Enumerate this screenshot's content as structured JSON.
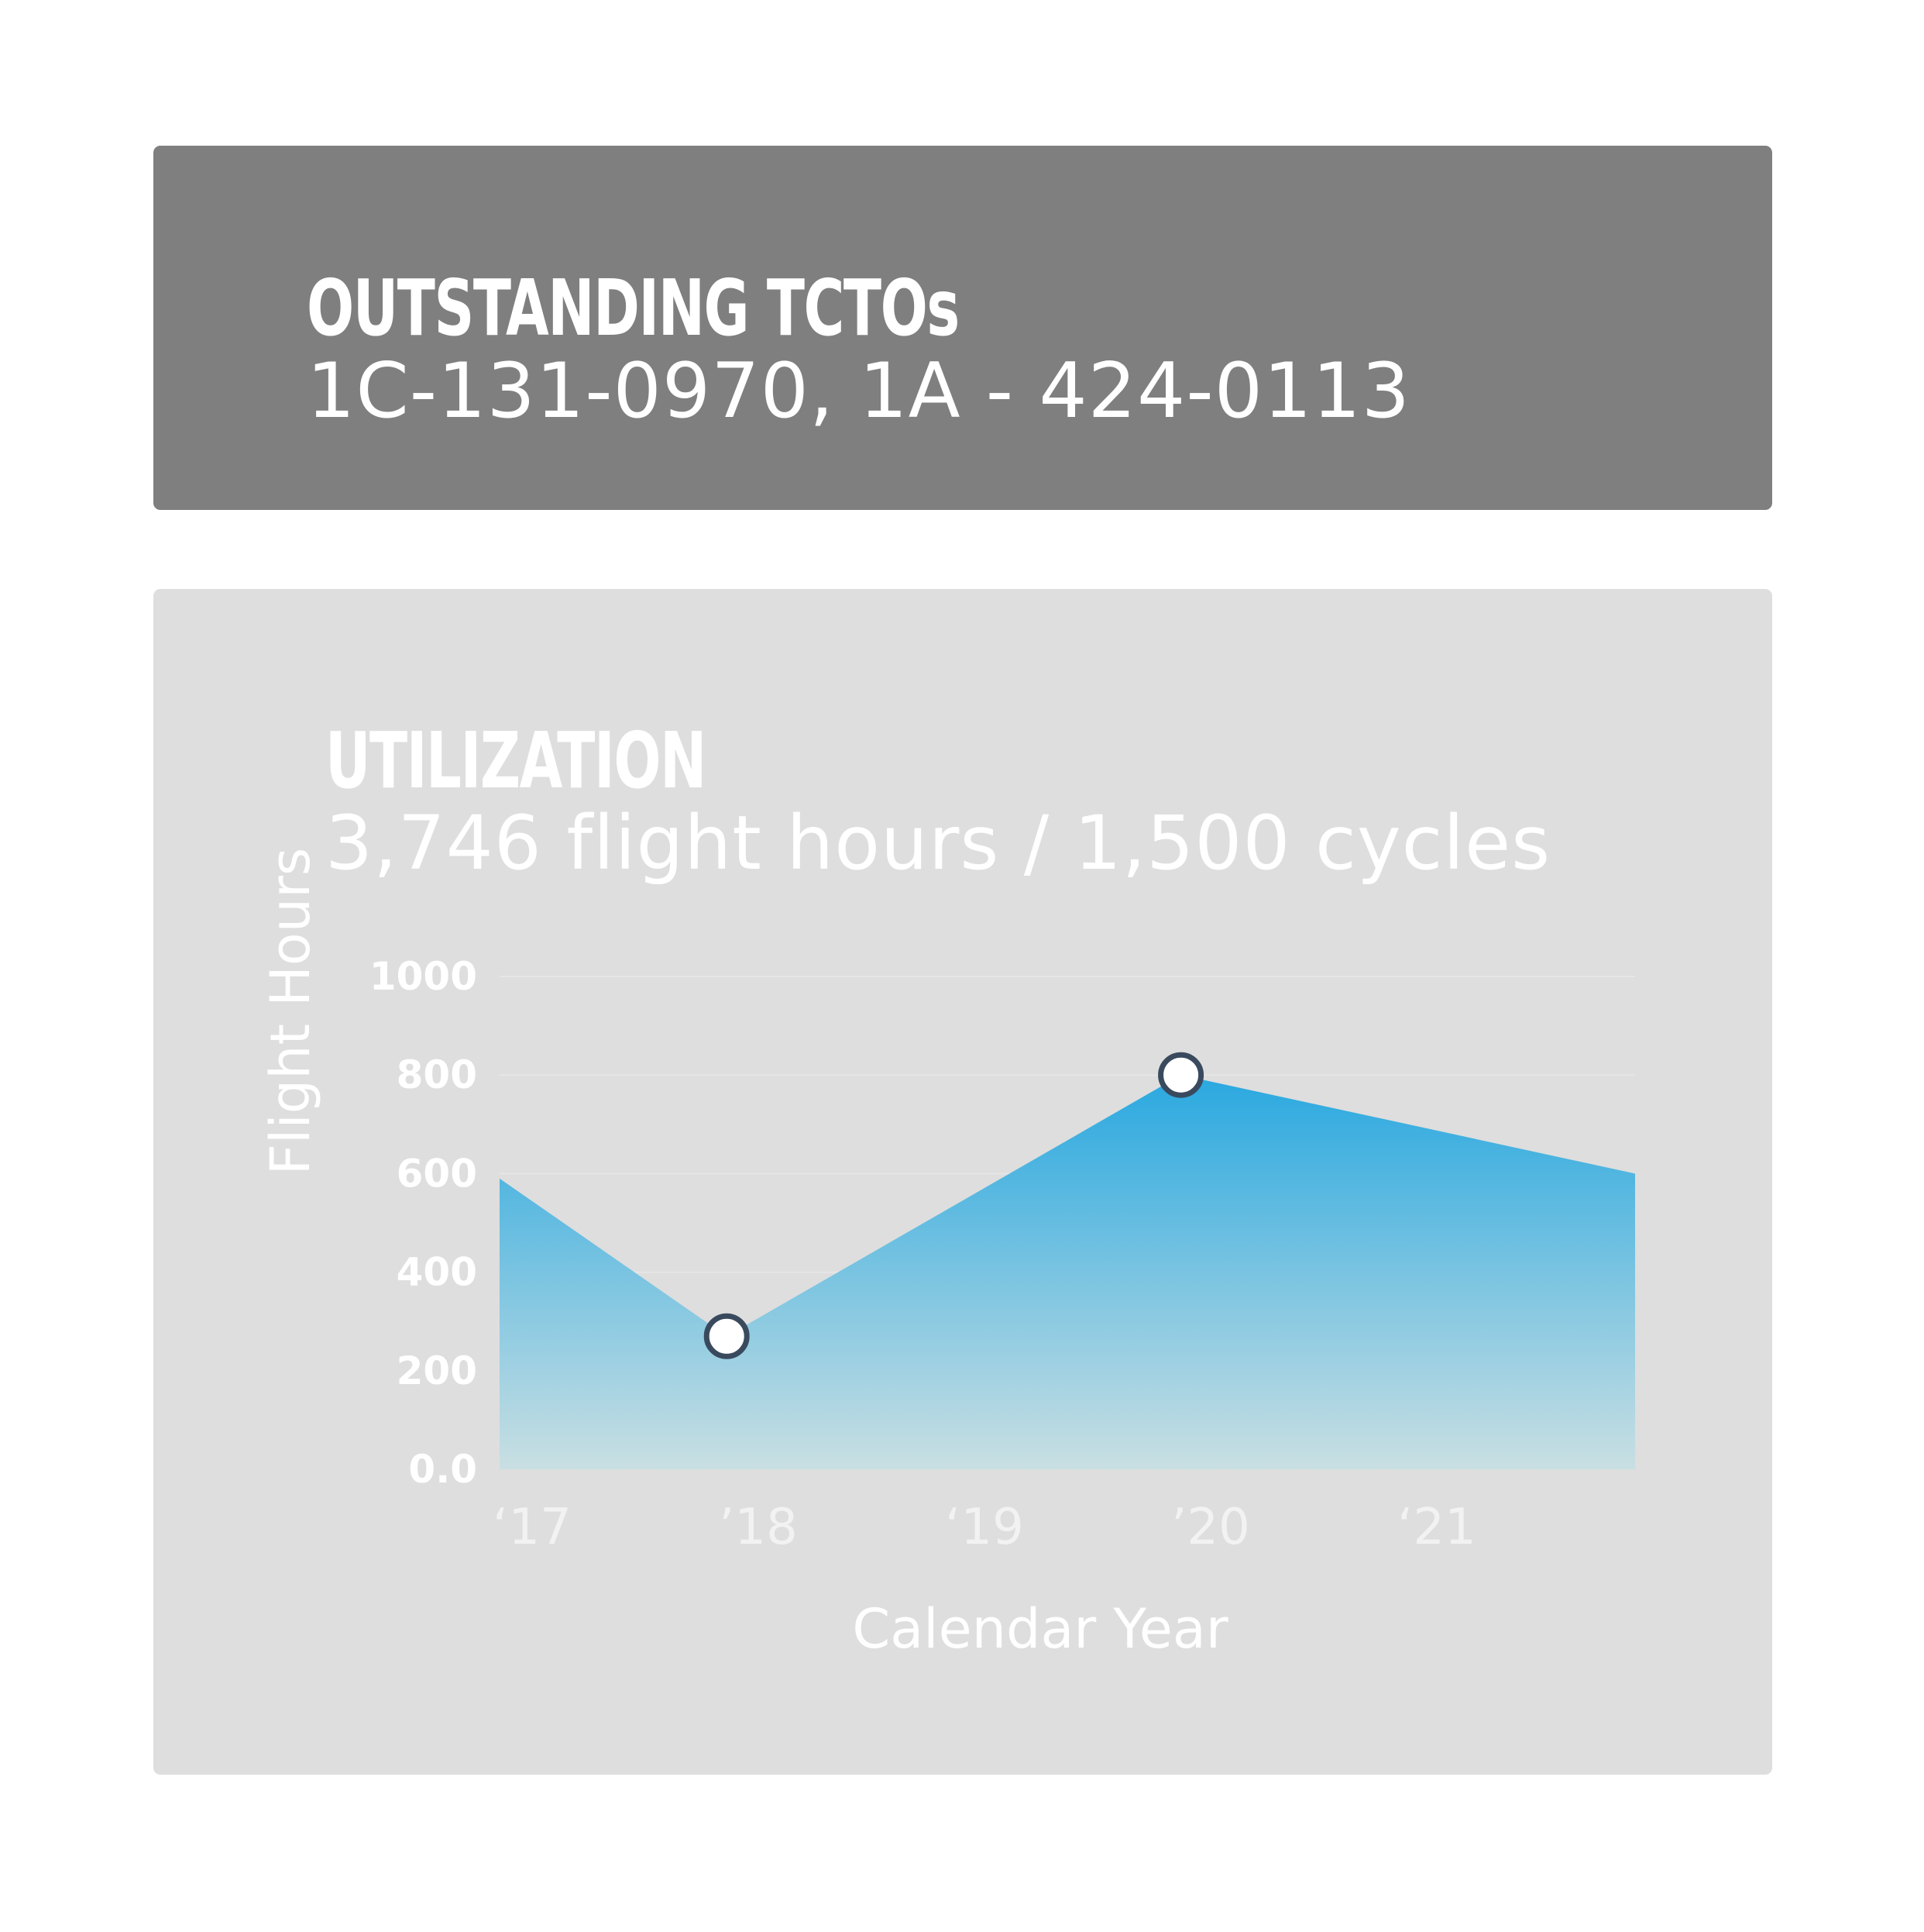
{
  "tcto": {
    "title": "OUTSTANDING TCTOs",
    "items": "1C-131-0970, 1A - 424-0113"
  },
  "utilization": {
    "title": "UTILIZATION",
    "summary": "3,746 flight hours / 1,500 cycles"
  },
  "chart_data": {
    "type": "area",
    "xlabel": "Calendar Year",
    "ylabel": "Flight Hours",
    "categories": [
      "‘17",
      "’18",
      "‘19",
      "’20",
      "‘21"
    ],
    "x": [
      2017,
      2018,
      2019,
      2020,
      2021,
      2022
    ],
    "values": [
      590,
      270,
      535,
      800,
      700,
      600
    ],
    "marked_points": [
      1,
      3
    ],
    "ylim": [
      0,
      1000
    ],
    "yticks": [
      "0.0",
      "200",
      "400",
      "600",
      "800",
      "1000"
    ],
    "grid": "horizontal",
    "colors": {
      "fill_top": "#29a8e0",
      "fill_bottom": "#c9dfe2",
      "marker_stroke": "#3a4a5e",
      "marker_fill": "#ffffff"
    }
  }
}
